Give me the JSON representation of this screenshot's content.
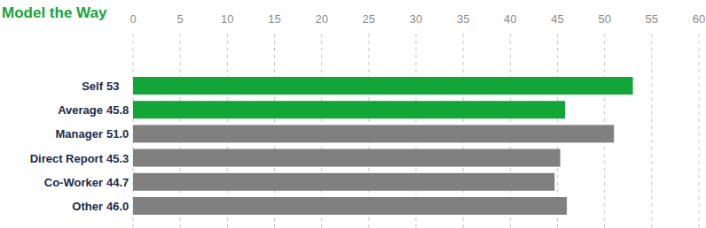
{
  "chart_data": {
    "type": "bar",
    "title": "Model the Way",
    "orientation": "horizontal",
    "categories": [
      "Self",
      "Average",
      "Manager",
      "Direct Report",
      "Co-Worker",
      "Other"
    ],
    "values": [
      53,
      45.8,
      51.0,
      45.3,
      44.7,
      46.0
    ],
    "value_labels": [
      "53",
      "45.8",
      "51.0",
      "45.3",
      "44.7",
      "46.0"
    ],
    "data_labels": true,
    "colors": [
      "#13a538",
      "#13a538",
      "#808080",
      "#808080",
      "#808080",
      "#808080"
    ],
    "xlim": [
      0,
      60
    ],
    "xticks": [
      0,
      5,
      10,
      15,
      20,
      25,
      30,
      35,
      40,
      45,
      50,
      55,
      60
    ],
    "grid": true
  }
}
